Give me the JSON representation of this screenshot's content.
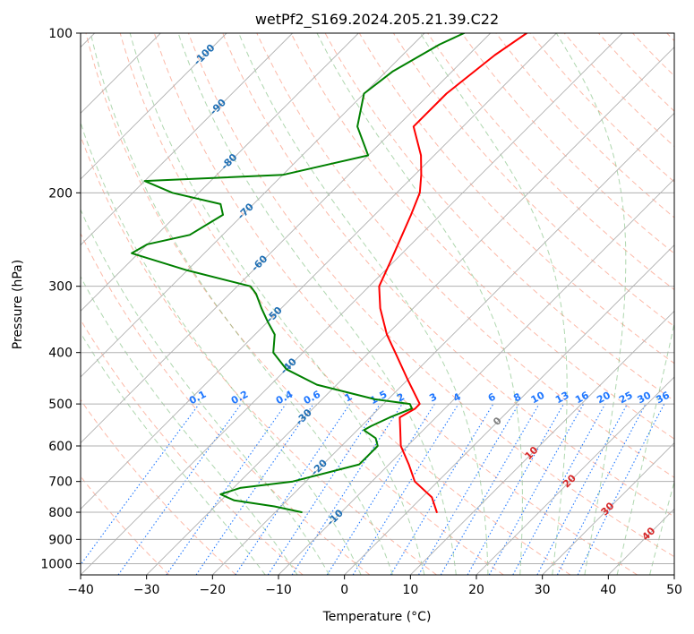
{
  "chart_data": {
    "type": "line",
    "title": "wetPf2_S169.2024.205.21.39.C22",
    "xlabel": "Temperature (°C)",
    "ylabel": "Pressure (hPa)",
    "xlim": [
      -40,
      50
    ],
    "ylim": [
      1050,
      100
    ],
    "y_scale": "log",
    "skew": 45,
    "grid": true,
    "x_ticks": [
      -40,
      -30,
      -20,
      -10,
      0,
      10,
      20,
      30,
      40,
      50
    ],
    "y_ticks": [
      100,
      200,
      300,
      400,
      500,
      600,
      700,
      800,
      900,
      1000
    ],
    "colors": {
      "temperature": "#ff0000",
      "dewpoint": "#008000",
      "dry_adiabat": "#fa8060",
      "moist_adiabat": "#60b060",
      "mixing_ratio": "#1f77ff",
      "upper_label": "#1f6fb4",
      "isotherm_label_red": "#d62728",
      "isotherm_label_gray": "#808080",
      "grid": "#b0b0b0"
    },
    "series": [
      {
        "key": "temperature",
        "points": [
          [
            100,
            -54.5
          ],
          [
            110,
            -56
          ],
          [
            130,
            -57.5
          ],
          [
            150,
            -57.5
          ],
          [
            170,
            -52
          ],
          [
            185,
            -49
          ],
          [
            200,
            -46.5
          ],
          [
            220,
            -44.5
          ],
          [
            250,
            -42
          ],
          [
            270,
            -40.5
          ],
          [
            300,
            -38.5
          ],
          [
            330,
            -35
          ],
          [
            370,
            -30
          ],
          [
            400,
            -26
          ],
          [
            450,
            -20
          ],
          [
            500,
            -14.5
          ],
          [
            510,
            -14.5
          ],
          [
            530,
            -15.5
          ],
          [
            560,
            -13.5
          ],
          [
            600,
            -11
          ],
          [
            650,
            -7
          ],
          [
            700,
            -3.5
          ],
          [
            750,
            1.5
          ],
          [
            800,
            4.5
          ]
        ]
      },
      {
        "key": "dewpoint",
        "points": [
          [
            100,
            -64
          ],
          [
            105,
            -66
          ],
          [
            118,
            -69
          ],
          [
            130,
            -70
          ],
          [
            150,
            -66
          ],
          [
            170,
            -60
          ],
          [
            185,
            -70
          ],
          [
            190,
            -90
          ],
          [
            200,
            -84
          ],
          [
            210,
            -75
          ],
          [
            220,
            -73
          ],
          [
            240,
            -75
          ],
          [
            250,
            -80
          ],
          [
            260,
            -81
          ],
          [
            280,
            -70
          ],
          [
            300,
            -58
          ],
          [
            310,
            -56
          ],
          [
            330,
            -53
          ],
          [
            350,
            -50
          ],
          [
            370,
            -47
          ],
          [
            400,
            -44.5
          ],
          [
            430,
            -40
          ],
          [
            460,
            -33
          ],
          [
            490,
            -22
          ],
          [
            500,
            -16
          ],
          [
            510,
            -15
          ],
          [
            530,
            -17
          ],
          [
            550,
            -18.5
          ],
          [
            560,
            -19
          ],
          [
            580,
            -16
          ],
          [
            600,
            -14.5
          ],
          [
            650,
            -14.5
          ],
          [
            700,
            -22
          ],
          [
            720,
            -29
          ],
          [
            740,
            -31
          ],
          [
            760,
            -28
          ],
          [
            780,
            -21
          ],
          [
            800,
            -16
          ]
        ]
      }
    ],
    "dry_adiabats": [
      -30,
      -20,
      -10,
      0,
      10,
      20,
      30,
      40,
      50,
      60,
      70,
      80,
      90,
      100,
      110,
      120,
      130,
      140,
      150,
      160,
      170,
      180,
      190,
      200
    ],
    "moist_adiabats": [
      -15,
      -10,
      -5,
      0,
      5,
      10,
      15,
      20,
      25,
      30,
      35,
      40,
      45
    ],
    "mixing_ratios": [
      0.1,
      0.2,
      0.4,
      0.6,
      1,
      1.5,
      2,
      3,
      4,
      6,
      8,
      10,
      13,
      16,
      20,
      25,
      30,
      36
    ],
    "mixing_ratio_labels": [
      "0.1",
      "0.2",
      "0.4",
      "0.6",
      "1",
      "1.5",
      "2",
      "3",
      "4",
      "6",
      "8",
      "10",
      "13",
      "16",
      "20",
      "25",
      "30",
      "36"
    ],
    "upper_isotherm_labels": [
      "-100",
      "-90",
      "-80",
      "-70",
      "-60",
      "-50",
      "-40",
      "-30",
      "-20",
      "-10"
    ],
    "upper_isotherm_values": [
      -100,
      -90,
      -80,
      -70,
      -60,
      -50,
      -40,
      -30,
      -20,
      -10
    ],
    "upper_isotherm_pressures": [
      110,
      138,
      175,
      217,
      272,
      340,
      425,
      530,
      660,
      820
    ],
    "lower_isotherm_labels": [
      "0",
      "10",
      "20",
      "30",
      "40"
    ],
    "lower_isotherm_values": [
      0,
      10,
      20,
      30,
      40
    ],
    "lower_isotherm_pressures": [
      540,
      620,
      700,
      790,
      880
    ]
  }
}
